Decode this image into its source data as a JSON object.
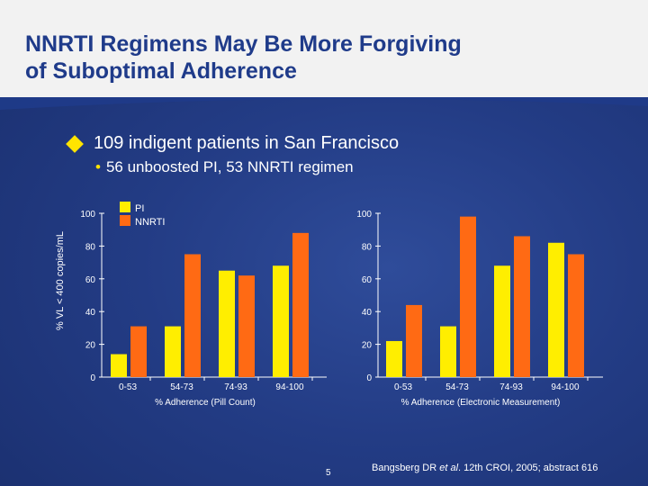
{
  "title": {
    "line1": "NNRTI Regimens May Be More Forgiving",
    "line2": "of Suboptimal Adherence"
  },
  "bullets": {
    "main": "109 indigent patients in San Francisco",
    "sub": "56 unboosted PI, 53 NNRTI regimen"
  },
  "footer": {
    "page": "5",
    "citation_prefix": "Bangsberg DR ",
    "citation_etal": "et al",
    "citation_suffix": ". 12th CROI, 2005; abstract 616"
  },
  "colors": {
    "pi": "#ffee00",
    "nnrti": "#ff6a14",
    "title": "#1f3b8a",
    "bullet_marker": "#ffe400"
  },
  "chart_data": [
    {
      "type": "bar",
      "categories": [
        "0-53",
        "54-73",
        "74-93",
        "94-100"
      ],
      "series": [
        {
          "name": "PI",
          "values": [
            14,
            31,
            65,
            68
          ]
        },
        {
          "name": "NNRTI",
          "values": [
            31,
            75,
            62,
            88
          ]
        }
      ],
      "xlabel": "% Adherence (Pill Count)",
      "ylabel": "% VL < 400 copies/mL",
      "ylim": [
        0,
        100
      ],
      "yticks": [
        0,
        20,
        40,
        60,
        80,
        100
      ],
      "legend": "top-left"
    },
    {
      "type": "bar",
      "categories": [
        "0-53",
        "54-73",
        "74-93",
        "94-100"
      ],
      "series": [
        {
          "name": "PI",
          "values": [
            22,
            31,
            68,
            82
          ]
        },
        {
          "name": "NNRTI",
          "values": [
            44,
            98,
            86,
            75
          ]
        }
      ],
      "xlabel": "% Adherence (Electronic Measurement)",
      "ylabel": "",
      "ylim": [
        0,
        100
      ],
      "yticks": [
        0,
        20,
        40,
        60,
        80,
        100
      ]
    }
  ]
}
